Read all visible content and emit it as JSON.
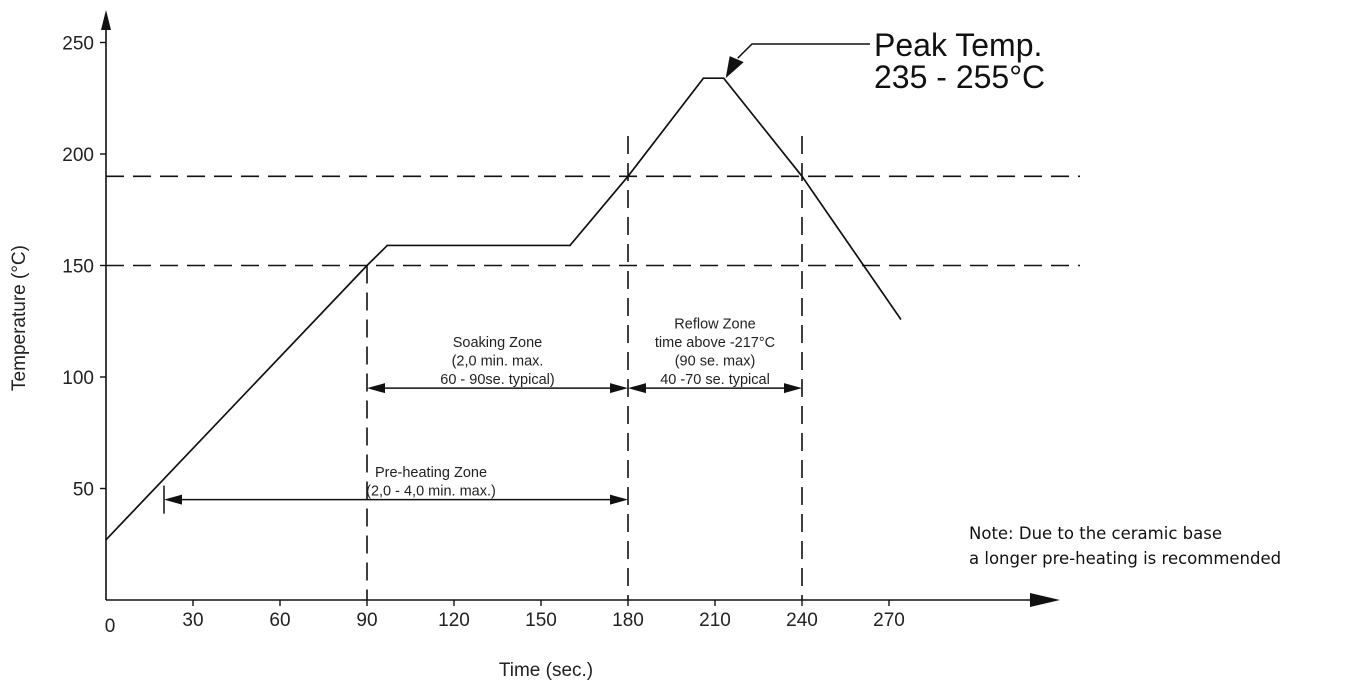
{
  "chart_data": {
    "type": "line",
    "xlabel": "Time (sec.)",
    "ylabel": "Temperature (°C)",
    "x_ticks": [
      "0",
      "30",
      "60",
      "90",
      "120",
      "150",
      "180",
      "210",
      "240",
      "270"
    ],
    "y_ticks": [
      "50",
      "100",
      "150",
      "200",
      "250"
    ],
    "xlim": [
      0,
      300
    ],
    "ylim": [
      0,
      260
    ],
    "grid": false,
    "series": [
      {
        "x": [
          0,
          90,
          97,
          160,
          180,
          206,
          213,
          240,
          274
        ],
        "y": [
          27,
          150,
          159,
          159,
          190,
          234,
          234,
          190,
          126
        ]
      }
    ],
    "reference_lines": {
      "horizontal": [
        150,
        190
      ],
      "vertical": [
        90,
        180,
        240
      ]
    },
    "zones": [
      {
        "lines": [
          "Pre-heating Zone",
          "(2,0 - 4,0 min. max.)"
        ],
        "from": 20,
        "to": 180,
        "arrow_y": 45
      },
      {
        "lines": [
          "Soaking Zone",
          "(2,0 min. max.",
          "60 - 90se. typical)"
        ],
        "from": 90,
        "to": 180,
        "arrow_y": 95
      },
      {
        "lines": [
          "Reflow Zone",
          "time above -217°C",
          "(90 se. max)",
          "40 -70 se. typical"
        ],
        "from": 180,
        "to": 240,
        "arrow_y": 95
      }
    ],
    "annotations": [
      {
        "lines": [
          "Peak Temp.",
          "235 - 255°C"
        ],
        "x": 213,
        "y": 234
      }
    ],
    "note": [
      "Note: Due to the ceramic base",
      "a longer pre-heating is recommended"
    ]
  }
}
